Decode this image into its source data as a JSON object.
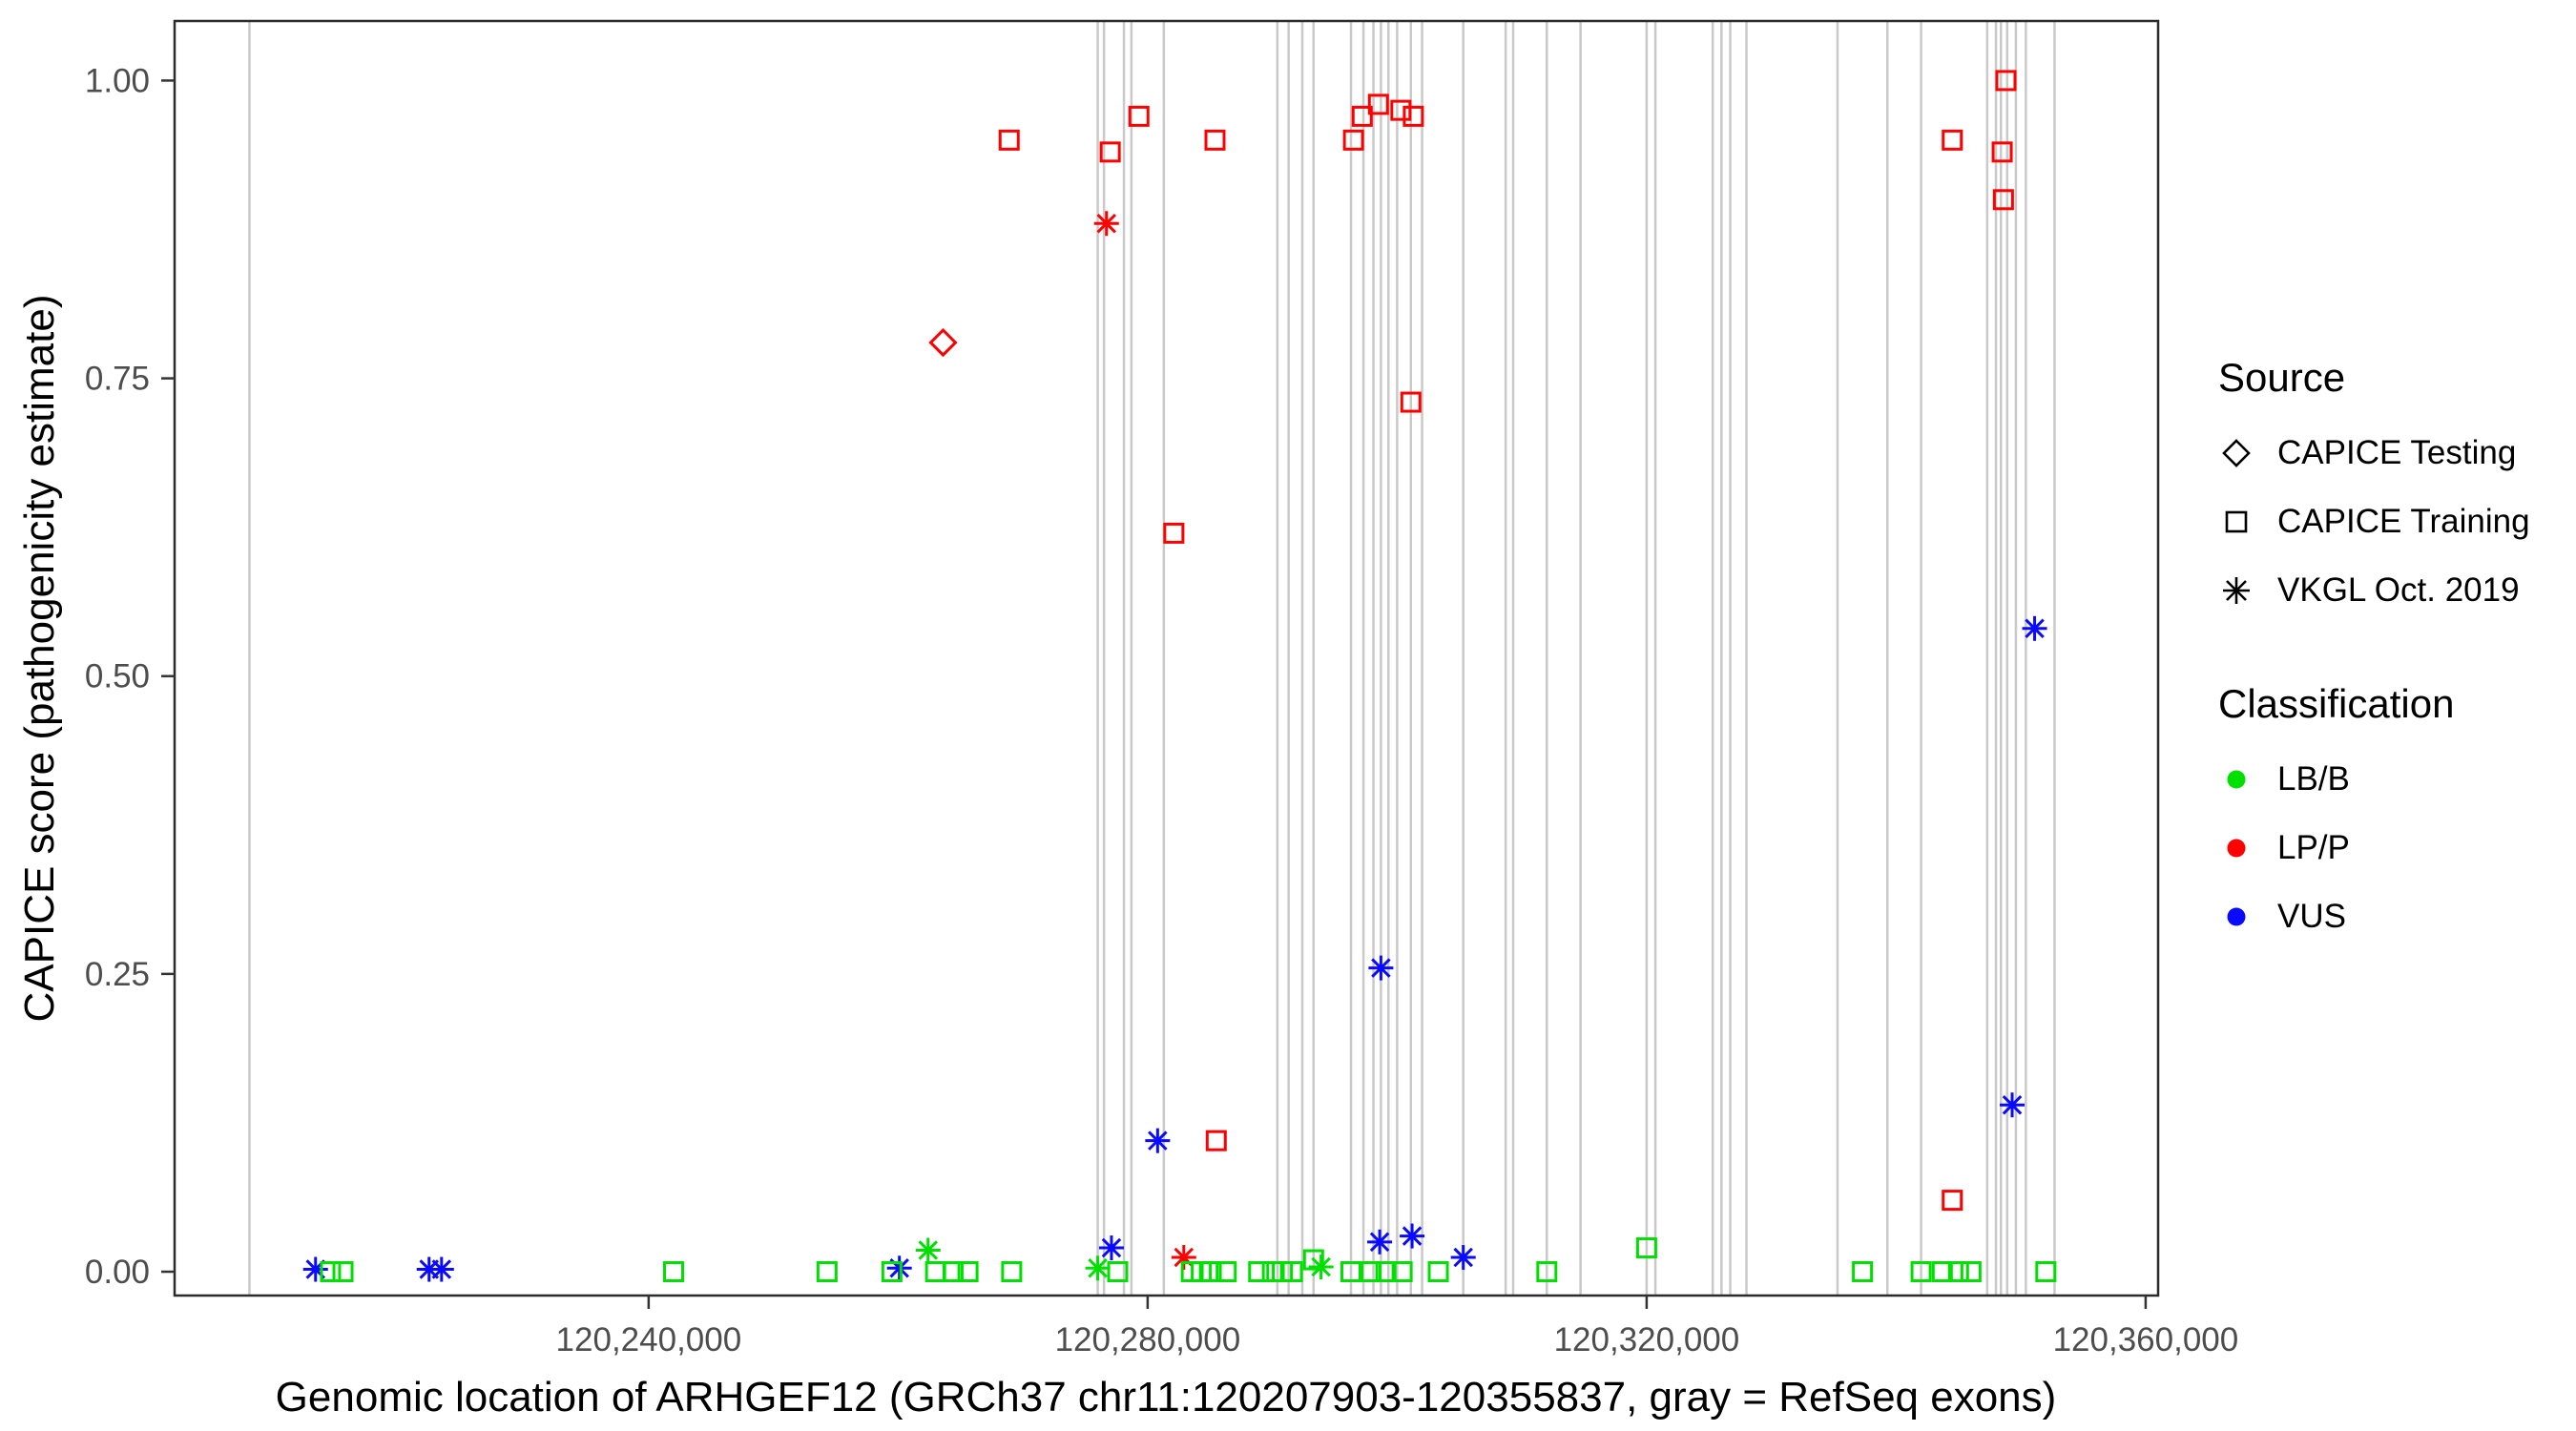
{
  "chart_data": {
    "type": "scatter",
    "title": "",
    "xlabel": "Genomic location of ARHGEF12 (GRCh37 chr11:120207903-120355837, gray = RefSeq exons)",
    "ylabel": "CAPICE score (pathogenicity estimate)",
    "xlim": [
      120202000,
      120361000
    ],
    "ylim": [
      -0.02,
      1.05
    ],
    "grid": "off",
    "legend_position": "right",
    "x_ticks": [
      {
        "value": 120240000,
        "label": "120,240,000"
      },
      {
        "value": 120280000,
        "label": "120,280,000"
      },
      {
        "value": 120320000,
        "label": "120,320,000"
      },
      {
        "value": 120360000,
        "label": "120,360,000"
      }
    ],
    "y_ticks": [
      {
        "value": 0.0,
        "label": "0.00"
      },
      {
        "value": 0.25,
        "label": "0.25"
      },
      {
        "value": 0.5,
        "label": "0.50"
      },
      {
        "value": 0.75,
        "label": "0.75"
      },
      {
        "value": 1.0,
        "label": "1.00"
      }
    ],
    "exon_color": "#c9c9c9",
    "exons": [
      120208000,
      120276000,
      120276500,
      120278100,
      120278700,
      120281300,
      120290400,
      120291300,
      120292400,
      120293300,
      120296300,
      120297300,
      120298100,
      120298700,
      120299300,
      120300000,
      120301100,
      120302000,
      120305300,
      120308700,
      120309300,
      120312000,
      120314700,
      120320000,
      120320700,
      120325300,
      120326000,
      120326700,
      120328000,
      120335300,
      120339300,
      120342000,
      120347300,
      120348000,
      120348400,
      120348900,
      120349600,
      120350400,
      120352700
    ],
    "colors": {
      "LB/B": "#00e000",
      "LP/P": "#ff0000",
      "VUS": "#0a0aff"
    },
    "shapes": {
      "CAPICE Testing": "diamond",
      "CAPICE Training": "square",
      "VKGL Oct. 2019": "asterisk"
    },
    "points": [
      {
        "x": 120268900,
        "y": 0.95,
        "source": "CAPICE Training",
        "cls": "LP/P"
      },
      {
        "x": 120277000,
        "y": 0.94,
        "source": "CAPICE Training",
        "cls": "LP/P"
      },
      {
        "x": 120279300,
        "y": 0.97,
        "source": "CAPICE Training",
        "cls": "LP/P"
      },
      {
        "x": 120285400,
        "y": 0.95,
        "source": "CAPICE Training",
        "cls": "LP/P"
      },
      {
        "x": 120296500,
        "y": 0.95,
        "source": "CAPICE Training",
        "cls": "LP/P"
      },
      {
        "x": 120297200,
        "y": 0.97,
        "source": "CAPICE Training",
        "cls": "LP/P"
      },
      {
        "x": 120298500,
        "y": 0.98,
        "source": "CAPICE Training",
        "cls": "LP/P"
      },
      {
        "x": 120300300,
        "y": 0.975,
        "source": "CAPICE Training",
        "cls": "LP/P"
      },
      {
        "x": 120301300,
        "y": 0.97,
        "source": "CAPICE Training",
        "cls": "LP/P"
      },
      {
        "x": 120301100,
        "y": 0.73,
        "source": "CAPICE Training",
        "cls": "LP/P"
      },
      {
        "x": 120282100,
        "y": 0.62,
        "source": "CAPICE Training",
        "cls": "LP/P"
      },
      {
        "x": 120285500,
        "y": 0.11,
        "source": "CAPICE Training",
        "cls": "LP/P"
      },
      {
        "x": 120344500,
        "y": 0.95,
        "source": "CAPICE Training",
        "cls": "LP/P"
      },
      {
        "x": 120348800,
        "y": 1.0,
        "source": "CAPICE Training",
        "cls": "LP/P"
      },
      {
        "x": 120348500,
        "y": 0.94,
        "source": "CAPICE Training",
        "cls": "LP/P"
      },
      {
        "x": 120348600,
        "y": 0.9,
        "source": "CAPICE Training",
        "cls": "LP/P"
      },
      {
        "x": 120344500,
        "y": 0.06,
        "source": "CAPICE Training",
        "cls": "LP/P"
      },
      {
        "x": 120263600,
        "y": 0.78,
        "source": "CAPICE Testing",
        "cls": "LP/P"
      },
      {
        "x": 120276700,
        "y": 0.88,
        "source": "VKGL Oct. 2019",
        "cls": "LP/P"
      },
      {
        "x": 120282900,
        "y": 0.012,
        "source": "VKGL Oct. 2019",
        "cls": "LP/P"
      },
      {
        "x": 120213300,
        "y": 0.002,
        "source": "VKGL Oct. 2019",
        "cls": "VUS"
      },
      {
        "x": 120222400,
        "y": 0.002,
        "source": "VKGL Oct. 2019",
        "cls": "VUS"
      },
      {
        "x": 120223400,
        "y": 0.002,
        "source": "VKGL Oct. 2019",
        "cls": "VUS"
      },
      {
        "x": 120260100,
        "y": 0.003,
        "source": "VKGL Oct. 2019",
        "cls": "VUS"
      },
      {
        "x": 120277100,
        "y": 0.02,
        "source": "VKGL Oct. 2019",
        "cls": "VUS"
      },
      {
        "x": 120280800,
        "y": 0.11,
        "source": "VKGL Oct. 2019",
        "cls": "VUS"
      },
      {
        "x": 120298700,
        "y": 0.255,
        "source": "VKGL Oct. 2019",
        "cls": "VUS"
      },
      {
        "x": 120298600,
        "y": 0.025,
        "source": "VKGL Oct. 2019",
        "cls": "VUS"
      },
      {
        "x": 120301200,
        "y": 0.03,
        "source": "VKGL Oct. 2019",
        "cls": "VUS"
      },
      {
        "x": 120305300,
        "y": 0.012,
        "source": "VKGL Oct. 2019",
        "cls": "VUS"
      },
      {
        "x": 120349300,
        "y": 0.14,
        "source": "VKGL Oct. 2019",
        "cls": "VUS"
      },
      {
        "x": 120351100,
        "y": 0.54,
        "source": "VKGL Oct. 2019",
        "cls": "VUS"
      },
      {
        "x": 120262400,
        "y": 0.018,
        "source": "VKGL Oct. 2019",
        "cls": "LB/B"
      },
      {
        "x": 120276000,
        "y": 0.003,
        "source": "VKGL Oct. 2019",
        "cls": "LB/B"
      },
      {
        "x": 120293900,
        "y": 0.004,
        "source": "VKGL Oct. 2019",
        "cls": "LB/B"
      },
      {
        "x": 120214500,
        "y": 0.0,
        "source": "CAPICE Training",
        "cls": "LB/B"
      },
      {
        "x": 120215500,
        "y": 0.0,
        "source": "CAPICE Training",
        "cls": "LB/B"
      },
      {
        "x": 120242000,
        "y": 0.0,
        "source": "CAPICE Training",
        "cls": "LB/B"
      },
      {
        "x": 120254300,
        "y": 0.0,
        "source": "CAPICE Training",
        "cls": "LB/B"
      },
      {
        "x": 120259500,
        "y": 0.0,
        "source": "CAPICE Training",
        "cls": "LB/B"
      },
      {
        "x": 120263000,
        "y": 0.0,
        "source": "CAPICE Training",
        "cls": "LB/B"
      },
      {
        "x": 120264400,
        "y": 0.0,
        "source": "CAPICE Training",
        "cls": "LB/B"
      },
      {
        "x": 120265600,
        "y": 0.0,
        "source": "CAPICE Training",
        "cls": "LB/B"
      },
      {
        "x": 120269100,
        "y": 0.0,
        "source": "CAPICE Training",
        "cls": "LB/B"
      },
      {
        "x": 120277600,
        "y": 0.0,
        "source": "CAPICE Training",
        "cls": "LB/B"
      },
      {
        "x": 120283500,
        "y": 0.0,
        "source": "CAPICE Training",
        "cls": "LB/B"
      },
      {
        "x": 120284300,
        "y": 0.0,
        "source": "CAPICE Training",
        "cls": "LB/B"
      },
      {
        "x": 120285100,
        "y": 0.0,
        "source": "CAPICE Training",
        "cls": "LB/B"
      },
      {
        "x": 120286300,
        "y": 0.0,
        "source": "CAPICE Training",
        "cls": "LB/B"
      },
      {
        "x": 120288900,
        "y": 0.0,
        "source": "CAPICE Training",
        "cls": "LB/B"
      },
      {
        "x": 120290000,
        "y": 0.0,
        "source": "CAPICE Training",
        "cls": "LB/B"
      },
      {
        "x": 120290800,
        "y": 0.0,
        "source": "CAPICE Training",
        "cls": "LB/B"
      },
      {
        "x": 120291600,
        "y": 0.0,
        "source": "CAPICE Training",
        "cls": "LB/B"
      },
      {
        "x": 120293300,
        "y": 0.01,
        "source": "CAPICE Training",
        "cls": "LB/B"
      },
      {
        "x": 120296300,
        "y": 0.0,
        "source": "CAPICE Training",
        "cls": "LB/B"
      },
      {
        "x": 120297900,
        "y": 0.0,
        "source": "CAPICE Training",
        "cls": "LB/B"
      },
      {
        "x": 120299100,
        "y": 0.0,
        "source": "CAPICE Training",
        "cls": "LB/B"
      },
      {
        "x": 120300400,
        "y": 0.0,
        "source": "CAPICE Training",
        "cls": "LB/B"
      },
      {
        "x": 120303300,
        "y": 0.0,
        "source": "CAPICE Training",
        "cls": "LB/B"
      },
      {
        "x": 120312000,
        "y": 0.0,
        "source": "CAPICE Training",
        "cls": "LB/B"
      },
      {
        "x": 120320000,
        "y": 0.02,
        "source": "CAPICE Training",
        "cls": "LB/B"
      },
      {
        "x": 120337300,
        "y": 0.0,
        "source": "CAPICE Training",
        "cls": "LB/B"
      },
      {
        "x": 120342000,
        "y": 0.0,
        "source": "CAPICE Training",
        "cls": "LB/B"
      },
      {
        "x": 120343700,
        "y": 0.0,
        "source": "CAPICE Training",
        "cls": "LB/B"
      },
      {
        "x": 120345000,
        "y": 0.0,
        "source": "CAPICE Training",
        "cls": "LB/B"
      },
      {
        "x": 120346000,
        "y": 0.0,
        "source": "CAPICE Training",
        "cls": "LB/B"
      },
      {
        "x": 120352000,
        "y": 0.0,
        "source": "CAPICE Training",
        "cls": "LB/B"
      }
    ]
  },
  "legend": {
    "source_title": "Source",
    "source_items": [
      {
        "label": "CAPICE Testing",
        "shape": "diamond"
      },
      {
        "label": "CAPICE Training",
        "shape": "square"
      },
      {
        "label": "VKGL Oct. 2019",
        "shape": "asterisk"
      }
    ],
    "class_title": "Classification",
    "class_items": [
      {
        "label": "LB/B",
        "color": "#00e000"
      },
      {
        "label": "LP/P",
        "color": "#ff0000"
      },
      {
        "label": "VUS",
        "color": "#0a0aff"
      }
    ]
  }
}
